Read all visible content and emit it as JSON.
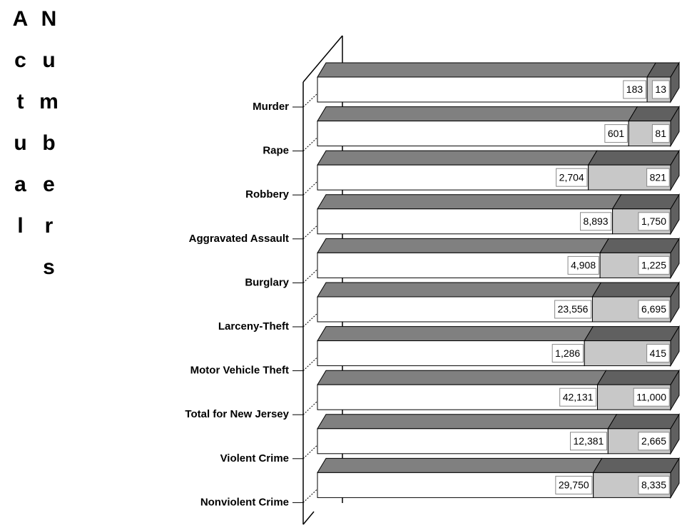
{
  "chart_data": {
    "type": "bar",
    "stacked": true,
    "percent": true,
    "orientation": "horizontal",
    "y_label": "Actual Numbers",
    "categories": [
      "Murder",
      "Rape",
      "Robbery",
      "Aggravated Assault",
      "Burglary",
      "Larceny-Theft",
      "Motor Vehicle Theft",
      "Total for New Jersey",
      "Violent Crime",
      "Nonviolent Crime"
    ],
    "series": [
      {
        "color": "#ffffff",
        "top_color": "#808080",
        "values": [
          183,
          601,
          2704,
          8893,
          4908,
          23556,
          1286,
          42131,
          12381,
          29750
        ],
        "value_labels": [
          "183",
          "601",
          "2,704",
          "8,893",
          "4,908",
          "23,556",
          "1,286",
          "42,131",
          "12,381",
          "29,750"
        ]
      },
      {
        "color": "#c8c8c8",
        "top_color": "#606060",
        "values": [
          13,
          81,
          821,
          1750,
          1225,
          6695,
          415,
          11000,
          2665,
          8335
        ],
        "value_labels": [
          "13",
          "81",
          "821",
          "1,750",
          "1,225",
          "6,695",
          "415",
          "11,000",
          "2,665",
          "8,335"
        ]
      }
    ]
  }
}
